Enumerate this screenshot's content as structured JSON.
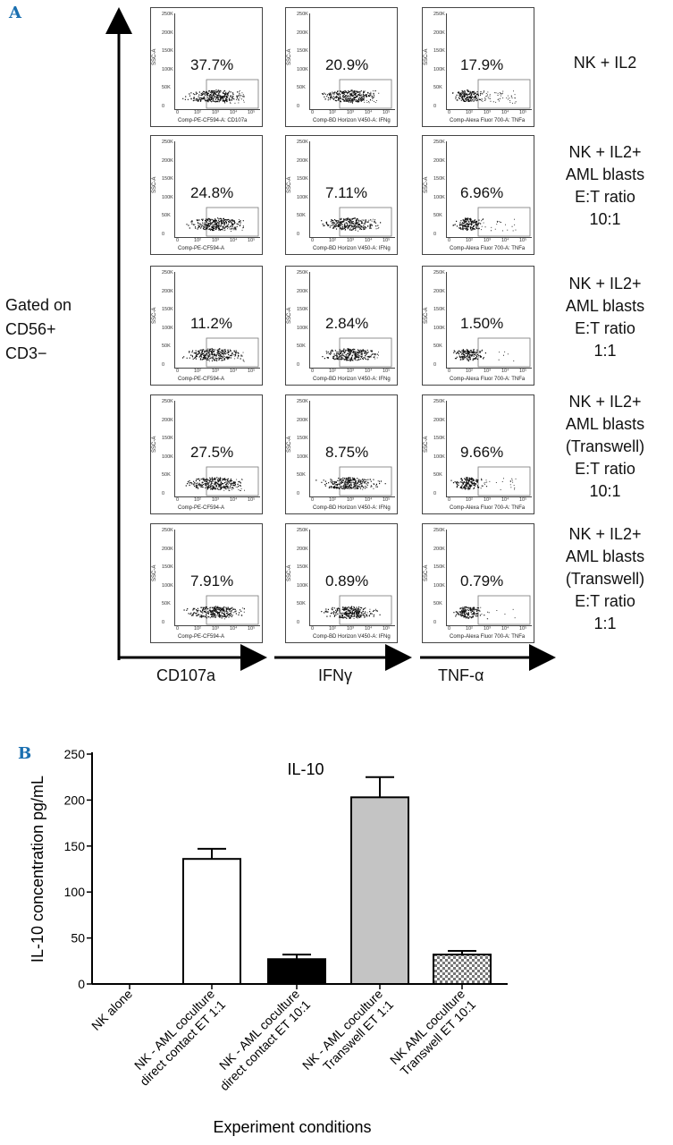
{
  "panel_a": {
    "letter": "A",
    "gate_lines": [
      "Gated on",
      "CD56+",
      "CD3−"
    ],
    "axis_names": [
      "CD107a",
      "IFNγ",
      "TNF-α"
    ],
    "y_ticks": [
      "250K",
      "200K",
      "150K",
      "100K",
      "50K",
      "0"
    ],
    "x_ticks": [
      "0",
      "10²",
      "10³",
      "10⁴",
      "10⁵"
    ],
    "y_axis_label": "SSC-A",
    "column_xlabels": [
      [
        "Comp-PE-CF594-A: CD107a",
        "Comp-PE-CF594-A",
        "Comp-PE-CF594-A",
        "Comp-PE-CF594-A",
        "Comp-PE-CF594-A"
      ],
      [
        "Comp-BD Horizon V450-A: IFNg",
        "Comp-BD Horizon V450-A: IFNg",
        "Comp-BD Horizon V450-A: IFNg",
        "Comp-BD Horizon V450-A: IFNg",
        "Comp-BD Horizon V450-A: IFNg"
      ],
      [
        "Comp-Alexa Fluor 700-A: TNFa",
        "Comp-Alexa Fluor 700-A: TNFa",
        "Comp-Alexa Fluor 700-A: TNFa",
        "Comp-Alexa Fluor 700-A: TNFa",
        "Comp-Alexa Fluor 700-A: TNFa"
      ]
    ],
    "rows": [
      {
        "condition": [
          "NK + IL2"
        ],
        "percentages": [
          "37.7%",
          "20.9%",
          "17.9%"
        ]
      },
      {
        "condition": [
          "NK + IL2+",
          "AML blasts",
          "E:T ratio",
          "10:1"
        ],
        "percentages": [
          "24.8%",
          "7.11%",
          "6.96%"
        ]
      },
      {
        "condition": [
          "NK + IL2+",
          "AML blasts",
          "E:T ratio",
          "1:1"
        ],
        "percentages": [
          "11.2%",
          "2.84%",
          "1.50%"
        ]
      },
      {
        "condition": [
          "NK + IL2+",
          "AML blasts",
          "(Transwell)",
          "E:T ratio",
          "10:1"
        ],
        "percentages": [
          "27.5%",
          "8.75%",
          "9.66%"
        ]
      },
      {
        "condition": [
          "NK + IL2+",
          "AML blasts",
          "(Transwell)",
          "E:T ratio",
          "1:1"
        ],
        "percentages": [
          "7.91%",
          "0.89%",
          "0.79%"
        ]
      }
    ]
  },
  "chart_data": {
    "letter": "B",
    "type": "bar",
    "title": "IL-10",
    "xlabel": "Experiment conditions",
    "ylabel": "IL-10 concentration pg/mL",
    "ylim": [
      0,
      250
    ],
    "yticks": [
      "0",
      "50",
      "100",
      "150",
      "200",
      "250"
    ],
    "categories": [
      [
        "NK alone"
      ],
      [
        "NK - AML coculture",
        "direct contact ET 1:1"
      ],
      [
        "NK - AML coculture",
        "direct contact ET 10:1"
      ],
      [
        "NK - AML coculture",
        "Transwell ET 1:1"
      ],
      [
        "NK AML coculture",
        "Transwell ET 10:1"
      ]
    ],
    "values": [
      0,
      136,
      27,
      203,
      32
    ],
    "errors": [
      0,
      11,
      5,
      22,
      4
    ],
    "fills": [
      "#ffffff",
      "#ffffff",
      "#000000",
      "#c4c4c4",
      "checker"
    ]
  }
}
